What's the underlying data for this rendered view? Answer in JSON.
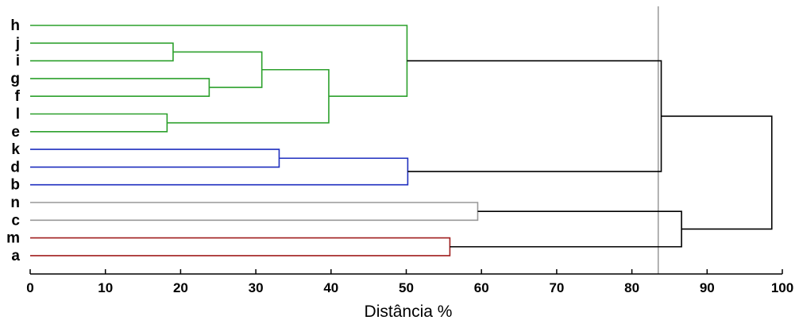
{
  "chart_data": {
    "type": "dendrogram",
    "xlabel": "Distância %",
    "xlim": [
      0,
      100
    ],
    "x_ticks": [
      0,
      10,
      20,
      30,
      40,
      50,
      60,
      70,
      80,
      90,
      100
    ],
    "x_tick_labels": [
      "0",
      "10",
      "20",
      "30",
      "40",
      "50",
      "60",
      "70",
      "80",
      "90",
      "100"
    ],
    "leaves": [
      "h",
      "j",
      "i",
      "g",
      "f",
      "l",
      "e",
      "k",
      "d",
      "b",
      "n",
      "c",
      "m",
      "a"
    ],
    "cutoff_line": 83.5,
    "colors": {
      "green": "#2ca02c",
      "blue": "#1f2fbf",
      "gray": "#999999",
      "red": "#a01f1f",
      "black": "#000000",
      "cutoff": "#999999"
    },
    "merges": [
      {
        "id": "m_ji",
        "children": [
          "j",
          "i"
        ],
        "height": 19.0,
        "color": "green"
      },
      {
        "id": "m_le",
        "children": [
          "l",
          "e"
        ],
        "height": 18.2,
        "color": "green"
      },
      {
        "id": "m_gf",
        "children": [
          "g",
          "f"
        ],
        "height": 23.8,
        "color": "green"
      },
      {
        "id": "m_jigf",
        "children": [
          "m_ji",
          "m_gf"
        ],
        "height": 30.8,
        "color": "green"
      },
      {
        "id": "m_jigfle",
        "children": [
          "m_jigf",
          "m_le"
        ],
        "height": 39.7,
        "color": "green"
      },
      {
        "id": "m_green",
        "children": [
          "h",
          "m_jigfle"
        ],
        "height": 50.1,
        "color": "green"
      },
      {
        "id": "m_kd",
        "children": [
          "k",
          "d"
        ],
        "height": 33.1,
        "color": "blue"
      },
      {
        "id": "m_blue",
        "children": [
          "m_kd",
          "b"
        ],
        "height": 50.2,
        "color": "blue"
      },
      {
        "id": "m_nc",
        "children": [
          "n",
          "c"
        ],
        "height": 59.5,
        "color": "gray"
      },
      {
        "id": "m_ma",
        "children": [
          "m",
          "a"
        ],
        "height": 55.8,
        "color": "red"
      },
      {
        "id": "m_gb",
        "children": [
          "m_green",
          "m_blue"
        ],
        "height": 83.9,
        "color": "black"
      },
      {
        "id": "m_ncma",
        "children": [
          "m_nc",
          "m_ma"
        ],
        "height": 86.6,
        "color": "black"
      },
      {
        "id": "m_root",
        "children": [
          "m_gb",
          "m_ncma"
        ],
        "height": 98.6,
        "color": "black"
      }
    ]
  }
}
